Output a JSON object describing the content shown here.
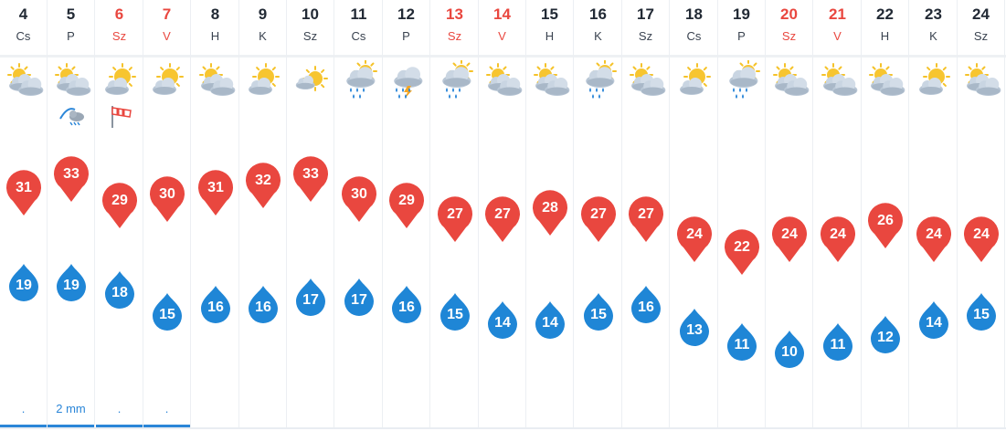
{
  "colors": {
    "max": "#e9473f",
    "min": "#1f86d6",
    "weekend": "#e9473f",
    "precip": "#2b86d8"
  },
  "scale": {
    "max_top": 33,
    "min_top": 19
  },
  "days": [
    {
      "num": "4",
      "name": "Cs",
      "weekend": false,
      "icon": "partly-cloudy-icon",
      "max": 31,
      "min": 19,
      "precip": ".",
      "extra": null
    },
    {
      "num": "5",
      "name": "P",
      "weekend": false,
      "icon": "partly-cloudy-icon",
      "max": 33,
      "min": 19,
      "precip": "2 mm",
      "extra": "storm-warning-icon"
    },
    {
      "num": "6",
      "name": "Sz",
      "weekend": true,
      "icon": "mostly-sunny-icon",
      "max": 29,
      "min": 18,
      "precip": ".",
      "extra": "windsock-icon"
    },
    {
      "num": "7",
      "name": "V",
      "weekend": true,
      "icon": "mostly-sunny-icon",
      "max": 30,
      "min": 15,
      "precip": ".",
      "extra": null
    },
    {
      "num": "8",
      "name": "H",
      "weekend": false,
      "icon": "partly-cloudy-icon",
      "max": 31,
      "min": 16,
      "precip": "",
      "extra": null
    },
    {
      "num": "9",
      "name": "K",
      "weekend": false,
      "icon": "mostly-sunny-icon",
      "max": 32,
      "min": 16,
      "precip": "",
      "extra": null
    },
    {
      "num": "10",
      "name": "Sz",
      "weekend": false,
      "icon": "sunny-icon",
      "max": 33,
      "min": 17,
      "precip": "",
      "extra": null
    },
    {
      "num": "11",
      "name": "Cs",
      "weekend": false,
      "icon": "rain-icon",
      "max": 30,
      "min": 17,
      "precip": "",
      "extra": null
    },
    {
      "num": "12",
      "name": "P",
      "weekend": false,
      "icon": "thunderstorm-icon",
      "max": 29,
      "min": 16,
      "precip": "",
      "extra": null
    },
    {
      "num": "13",
      "name": "Sz",
      "weekend": true,
      "icon": "rain-icon",
      "max": 27,
      "min": 15,
      "precip": "",
      "extra": null
    },
    {
      "num": "14",
      "name": "V",
      "weekend": true,
      "icon": "partly-cloudy-icon",
      "max": 27,
      "min": 14,
      "precip": "",
      "extra": null
    },
    {
      "num": "15",
      "name": "H",
      "weekend": false,
      "icon": "partly-cloudy-icon",
      "max": 28,
      "min": 14,
      "precip": "",
      "extra": null
    },
    {
      "num": "16",
      "name": "K",
      "weekend": false,
      "icon": "rain-icon",
      "max": 27,
      "min": 15,
      "precip": "",
      "extra": null
    },
    {
      "num": "17",
      "name": "Sz",
      "weekend": false,
      "icon": "partly-cloudy-icon",
      "max": 27,
      "min": 16,
      "precip": "",
      "extra": null
    },
    {
      "num": "18",
      "name": "Cs",
      "weekend": false,
      "icon": "mostly-sunny-icon",
      "max": 24,
      "min": 13,
      "precip": "",
      "extra": null
    },
    {
      "num": "19",
      "name": "P",
      "weekend": false,
      "icon": "rain-icon",
      "max": 22,
      "min": 11,
      "precip": "",
      "extra": null
    },
    {
      "num": "20",
      "name": "Sz",
      "weekend": true,
      "icon": "partly-cloudy-icon",
      "max": 24,
      "min": 10,
      "precip": "",
      "extra": null
    },
    {
      "num": "21",
      "name": "V",
      "weekend": true,
      "icon": "partly-cloudy-icon",
      "max": 24,
      "min": 11,
      "precip": "",
      "extra": null
    },
    {
      "num": "22",
      "name": "H",
      "weekend": false,
      "icon": "partly-cloudy-icon",
      "max": 26,
      "min": 12,
      "precip": "",
      "extra": null
    },
    {
      "num": "23",
      "name": "K",
      "weekend": false,
      "icon": "mostly-sunny-icon",
      "max": 24,
      "min": 14,
      "precip": "",
      "extra": null
    },
    {
      "num": "24",
      "name": "Sz",
      "weekend": false,
      "icon": "partly-cloudy-icon",
      "max": 24,
      "min": 15,
      "precip": "",
      "extra": null
    }
  ]
}
